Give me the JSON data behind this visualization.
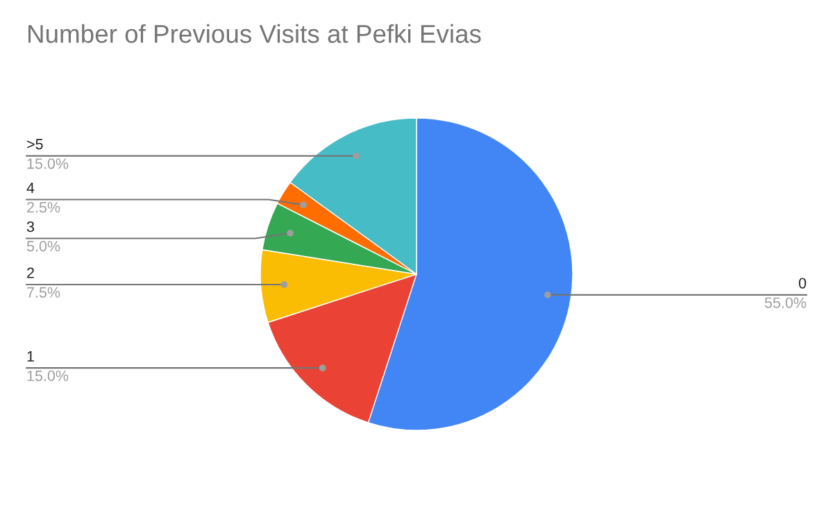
{
  "chart_data": {
    "type": "pie",
    "title": "Number of Previous Visits at Pefki Evias",
    "categories": [
      "0",
      "1",
      "2",
      "3",
      "4",
      ">5"
    ],
    "values": [
      55,
      15,
      7.5,
      5,
      2.5,
      15
    ],
    "colors": [
      "#4285f4",
      "#ea4335",
      "#fbbc04",
      "#34a853",
      "#ff6d01",
      "#46bdc6"
    ],
    "value_labels": [
      "55.0%",
      "15.0%",
      "7.5%",
      "5.0%",
      "2.5%",
      "15.0%"
    ]
  }
}
